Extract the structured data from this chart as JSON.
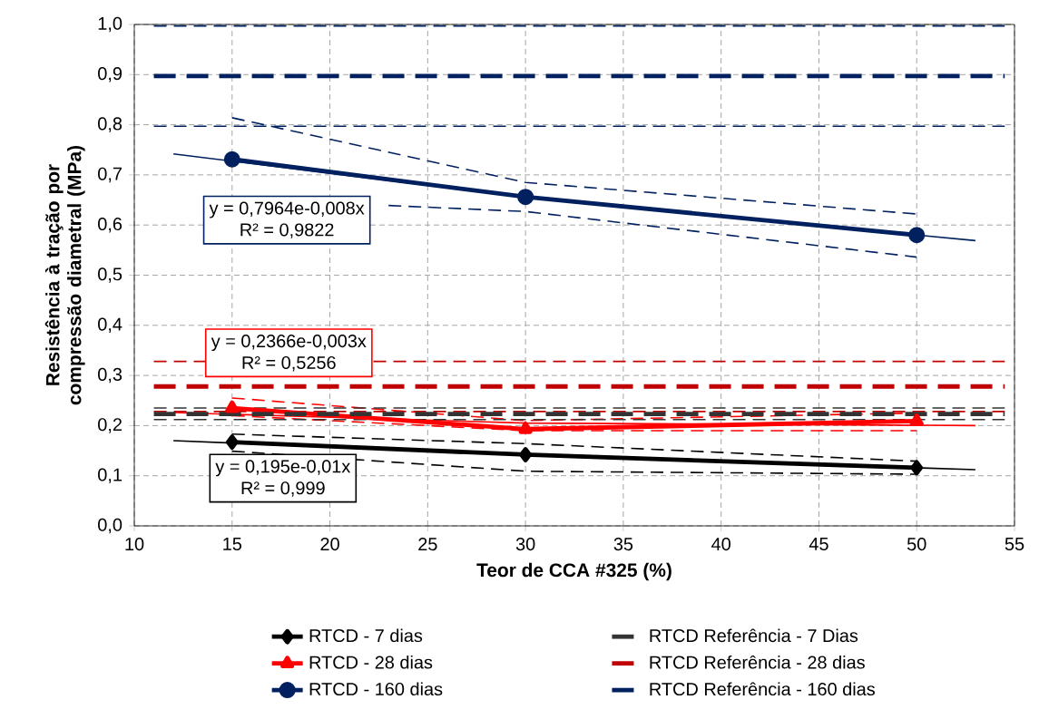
{
  "chart_data": {
    "type": "line",
    "xlabel": "Teor de CCA  #325 (%)",
    "ylabel": "Resistência à tração por compressão diametral (MPa)",
    "xlim": [
      10,
      55
    ],
    "ylim": [
      0,
      1.0
    ],
    "xticks": [
      10,
      15,
      20,
      25,
      30,
      35,
      40,
      45,
      50,
      55
    ],
    "yticks": [
      {
        "value": 0,
        "label": "0,0"
      },
      {
        "value": 0.1,
        "label": "0,1"
      },
      {
        "value": 0.2,
        "label": "0,2"
      },
      {
        "value": 0.3,
        "label": "0,3"
      },
      {
        "value": 0.4,
        "label": "0,4"
      },
      {
        "value": 0.5,
        "label": "0,5"
      },
      {
        "value": 0.6,
        "label": "0,6"
      },
      {
        "value": 0.7,
        "label": "0,7"
      },
      {
        "value": 0.8,
        "label": "0,8"
      },
      {
        "value": 0.9,
        "label": "0,9"
      },
      {
        "value": 1.0,
        "label": "1,0"
      }
    ],
    "grid": true,
    "legend": "bottom",
    "series": [
      {
        "color": "#000000",
        "x": [
          12,
          30,
          53
        ],
        "values": [
          0.17,
          0.142,
          0.112
        ],
        "marker": "none",
        "line_style": "solid"
      },
      {
        "color": "#000000",
        "x": [
          15,
          30,
          50
        ],
        "values": [
          0.183,
          0.164,
          0.129
        ],
        "marker": "none",
        "line_style": "dashed"
      },
      {
        "color": "#000000",
        "x": [
          15,
          30,
          50
        ],
        "values": [
          0.149,
          0.109,
          0.103
        ],
        "marker": "none",
        "line_style": "dashed"
      },
      {
        "color": "#ff0000",
        "x": [
          12,
          30,
          53
        ],
        "values": [
          0.226,
          0.205,
          0.2
        ],
        "marker": "none",
        "line_style": "solid"
      },
      {
        "color": "#ff0000",
        "x": [
          15,
          30,
          50
        ],
        "values": [
          0.255,
          0.21,
          0.225
        ],
        "marker": "none",
        "line_style": "dashed"
      },
      {
        "color": "#ff0000",
        "x": [
          15,
          30,
          50
        ],
        "values": [
          0.22,
          0.19,
          0.19
        ],
        "marker": "none",
        "line_style": "dashed"
      },
      {
        "color": "#002060",
        "x": [
          12,
          30,
          53
        ],
        "values": [
          0.742,
          0.655,
          0.569
        ],
        "marker": "none",
        "line_style": "solid"
      },
      {
        "color": "#002060",
        "x": [
          15,
          30,
          50
        ],
        "values": [
          0.814,
          0.685,
          0.622
        ],
        "marker": "none",
        "line_style": "dashed"
      },
      {
        "color": "#002060",
        "x": [
          23,
          30,
          50
        ],
        "values": [
          0.639,
          0.627,
          0.536
        ],
        "marker": "none",
        "line_style": "dashed"
      },
      {
        "color": "#333333",
        "x": [
          11,
          54.5
        ],
        "values": [
          0.235,
          0.235
        ],
        "marker": "none",
        "line_style": "dashed"
      },
      {
        "color": "#333333",
        "x": [
          11,
          54.5
        ],
        "values": [
          0.212,
          0.212
        ],
        "marker": "none",
        "line_style": "dashed"
      },
      {
        "color": "#c00000",
        "x": [
          11,
          54.5
        ],
        "values": [
          0.328,
          0.328
        ],
        "marker": "none",
        "line_style": "dashed"
      },
      {
        "color": "#c00000",
        "x": [
          11,
          54.5
        ],
        "values": [
          0.228,
          0.228
        ],
        "marker": "none",
        "line_style": "dashed"
      },
      {
        "color": "#002060",
        "x": [
          11,
          54.5
        ],
        "values": [
          0.997,
          0.997
        ],
        "marker": "none",
        "line_style": "dashed"
      },
      {
        "color": "#002060",
        "x": [
          11,
          54.5
        ],
        "values": [
          0.797,
          0.797
        ],
        "marker": "none",
        "line_style": "dashed"
      },
      {
        "name": "RTCD - 7 dias",
        "color": "#000000",
        "x": [
          15,
          30,
          50
        ],
        "values": [
          0.167,
          0.142,
          0.116
        ],
        "marker": "diamond",
        "line_style": "solid"
      },
      {
        "name": "RTCD - 28 dias",
        "color": "#ff0000",
        "x": [
          15,
          30,
          50
        ],
        "values": [
          0.235,
          0.193,
          0.209
        ],
        "marker": "triangle",
        "line_style": "solid"
      },
      {
        "name": "RTCD - 160 dias",
        "color": "#002060",
        "x": [
          15,
          30,
          50
        ],
        "values": [
          0.731,
          0.656,
          0.58
        ],
        "marker": "circle",
        "line_style": "solid"
      },
      {
        "name": "RTCD Referência - 7 Dias",
        "color": "#333333",
        "x": [
          11,
          54.5
        ],
        "values": [
          0.223,
          0.223
        ],
        "marker": "none",
        "line_style": "dashed"
      },
      {
        "name": "RTCD Referência - 28 dias",
        "color": "#c00000",
        "x": [
          11,
          54.5
        ],
        "values": [
          0.278,
          0.278
        ],
        "marker": "none",
        "line_style": "dashed"
      },
      {
        "name": "RTCD Referência - 160 dias",
        "color": "#002060",
        "x": [
          11,
          54.5
        ],
        "values": [
          0.897,
          0.897
        ],
        "marker": "none",
        "line_style": "dashed"
      }
    ],
    "annotations": [
      "y = 0,7964e-0,008x",
      "R² = 0,9822",
      "y = 0,2366e-0,003x",
      "R² = 0,5256",
      "y = 0,195e-0,01x",
      "R² = 0,999"
    ]
  }
}
